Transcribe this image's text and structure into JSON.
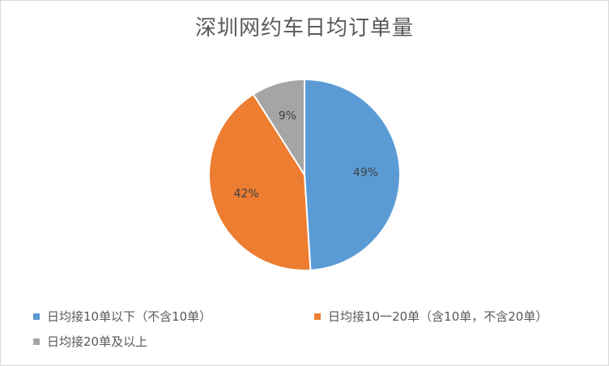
{
  "chart_data": {
    "type": "pie",
    "title": "深圳网约车日均订单量",
    "categories": [
      "日均接10单以下（不含10单）",
      "日均接10一20单（含10单，不含20单）",
      "日均接20单及以上"
    ],
    "values": [
      49,
      42,
      9
    ],
    "labels": [
      "49%",
      "42%",
      "9%"
    ],
    "colors": [
      "#5b9bd5",
      "#ed7d31",
      "#a5a5a5"
    ],
    "legend_position": "bottom"
  }
}
